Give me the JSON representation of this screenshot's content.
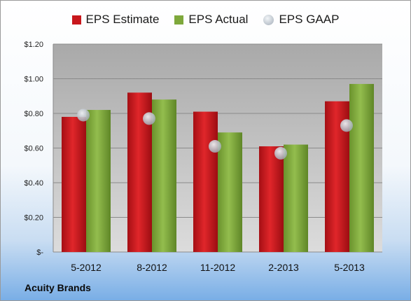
{
  "chart_data": {
    "type": "bar",
    "categories": [
      "5-2012",
      "8-2012",
      "11-2012",
      "2-2013",
      "5-2013"
    ],
    "series": [
      {
        "name": "EPS Estimate",
        "kind": "bar",
        "color": "#c8171c",
        "values": [
          0.78,
          0.92,
          0.81,
          0.61,
          0.87
        ]
      },
      {
        "name": "EPS Actual",
        "kind": "bar",
        "color": "#7ea83b",
        "values": [
          0.82,
          0.88,
          0.69,
          0.62,
          0.97
        ]
      },
      {
        "name": "EPS GAAP",
        "kind": "marker",
        "color": "#b9c1ca",
        "values": [
          0.79,
          0.77,
          0.61,
          0.57,
          0.73
        ]
      }
    ],
    "yticks": [
      "$-",
      "$0.20",
      "$0.40",
      "$0.60",
      "$0.80",
      "$1.00",
      "$1.20"
    ],
    "ylim": [
      0,
      1.2
    ],
    "grid": true,
    "legend_position": "top"
  },
  "company": "Acuity Brands"
}
